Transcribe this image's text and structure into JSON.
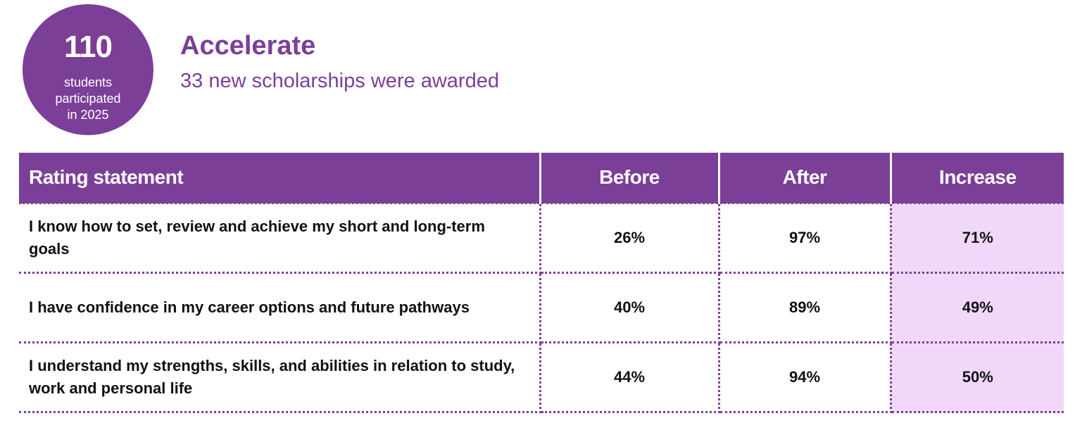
{
  "badge": {
    "number": "110",
    "caption_lines": [
      "students",
      "participated",
      "in 2025"
    ]
  },
  "program": {
    "title": "Accelerate",
    "subtitle": "33 new scholarships were awarded"
  },
  "table": {
    "headers": [
      "Rating statement",
      "Before",
      "After",
      "Increase"
    ],
    "rows": [
      {
        "statement": "I know how to set, review and achieve my short and long-term goals",
        "before": "26%",
        "after": "97%",
        "increase": "71%"
      },
      {
        "statement": "I have confidence in my career options and future pathways",
        "before": "40%",
        "after": "89%",
        "increase": "49%"
      },
      {
        "statement": "I understand my strengths, skills, and abilities in relation to study, work and personal life",
        "before": "44%",
        "after": "94%",
        "increase": "50%"
      }
    ]
  },
  "colors": {
    "brand_purple": "#7b3f98",
    "increase_highlight": "#f1d8fb"
  }
}
